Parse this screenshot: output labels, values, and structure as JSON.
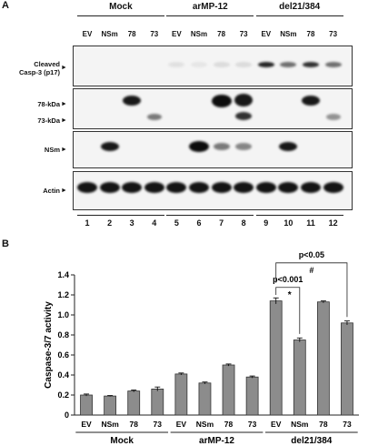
{
  "panel_a": {
    "letter": "A",
    "groups": [
      "Mock",
      "arMP-12",
      "del21/384"
    ],
    "lane_labels": [
      "EV",
      "NSm",
      "78",
      "73",
      "EV",
      "NSm",
      "78",
      "73",
      "EV",
      "NSm",
      "78",
      "73"
    ],
    "lane_numbers": [
      "1",
      "2",
      "3",
      "4",
      "5",
      "6",
      "7",
      "8",
      "9",
      "10",
      "11",
      "12"
    ],
    "blots": [
      {
        "label_lines": [
          "Cleaved",
          "Casp-3 (p17)"
        ]
      },
      {
        "label_lines": [
          "78-kDa",
          "73-kDa"
        ]
      },
      {
        "label_lines": [
          "NSm"
        ]
      },
      {
        "label_lines": [
          "Actin"
        ]
      }
    ],
    "arrow": "►"
  },
  "panel_b": {
    "letter": "B"
  },
  "chart_data": {
    "type": "bar",
    "ylabel": "Caspase-3/7 activity",
    "xlabel": "",
    "ylim": [
      0,
      1.4
    ],
    "yticks": [
      "0",
      "0.2",
      "0.4",
      "0.6",
      "0.8",
      "1.0",
      "1.2",
      "1.4"
    ],
    "ytick_values": [
      0,
      0.2,
      0.4,
      0.6,
      0.8,
      1.0,
      1.2,
      1.4
    ],
    "categories": [
      "EV",
      "NSm",
      "78",
      "73",
      "EV",
      "NSm",
      "78",
      "73",
      "EV",
      "NSm",
      "78",
      "73"
    ],
    "values": [
      0.2,
      0.19,
      0.24,
      0.26,
      0.41,
      0.32,
      0.5,
      0.38,
      1.14,
      0.75,
      1.13,
      0.92
    ],
    "errors": [
      0.01,
      0.005,
      0.01,
      0.02,
      0.01,
      0.01,
      0.01,
      0.01,
      0.03,
      0.02,
      0.01,
      0.02
    ],
    "groups": [
      "Mock",
      "arMP-12",
      "del21/384"
    ],
    "annotations": [
      {
        "text": "p<0.001",
        "symbol": "*",
        "from": 8,
        "to": 9
      },
      {
        "text": "p<0.05",
        "symbol": "#",
        "from": 8,
        "to": 11
      }
    ],
    "bar_color": "#8c8c8c",
    "grid": false
  }
}
